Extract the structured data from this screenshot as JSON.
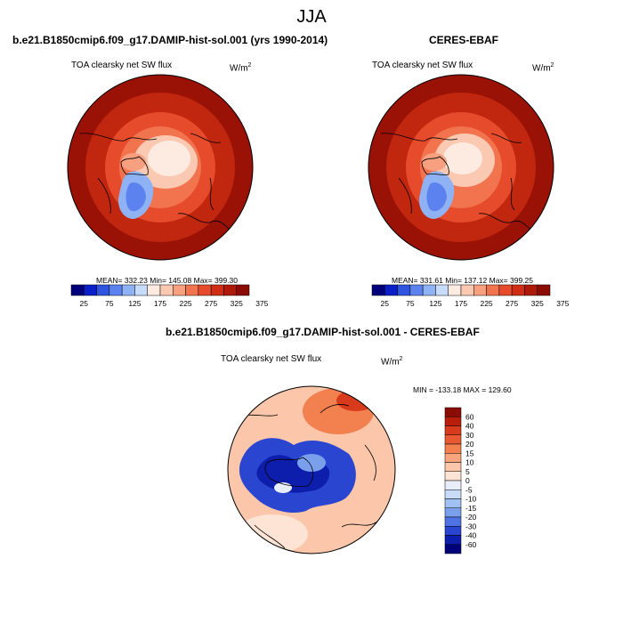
{
  "figure": {
    "title": "JJA"
  },
  "panels": {
    "model": {
      "title": "b.e21.B1850cmip6.f09_g17.DAMIP-hist-sol.001 (yrs 1990-2014)",
      "variable": "TOA clearsky net SW flux",
      "units_base": "W/m",
      "units_exp": "2",
      "stats": "MEAN= 332.23  Min= 145.08  Max= 399.30"
    },
    "obs": {
      "title": "CERES-EBAF",
      "variable": "TOA clearsky net SW flux",
      "units_base": "W/m",
      "units_exp": "2",
      "stats": "MEAN= 331.61  Min= 137.12  Max= 399.25"
    },
    "diff": {
      "title": "b.e21.B1850cmip6.f09_g17.DAMIP-hist-sol.001 - CERES-EBAF",
      "variable": "TOA clearsky net SW flux",
      "units_base": "W/m",
      "units_exp": "2",
      "stats": "MIN = -133.18  MAX = 129.60"
    }
  },
  "colorbars": {
    "abs_ticks": [
      "25",
      "75",
      "125",
      "175",
      "225",
      "275",
      "325",
      "375"
    ],
    "abs_colors": [
      "#00007a",
      "#0a1fc8",
      "#2f55e0",
      "#5b82ee",
      "#8fb2f5",
      "#c7dbfb",
      "#fdebe2",
      "#fbc9b1",
      "#f7a07f",
      "#f2744f",
      "#e64b2c",
      "#cf2d14",
      "#ad1a09",
      "#8a0c04"
    ],
    "diff_ticks": [
      "60",
      "40",
      "30",
      "20",
      "15",
      "10",
      "5",
      "0",
      "-5",
      "-10",
      "-15",
      "-20",
      "-30",
      "-40",
      "-60"
    ],
    "diff_colors": [
      "#8a0c04",
      "#b81e0a",
      "#d83b1c",
      "#ea5a32",
      "#f3804f",
      "#f8a47d",
      "#fbc6a9",
      "#fde4d4",
      "#e9edf7",
      "#c8dbf7",
      "#a0c1f2",
      "#7aa0ec",
      "#4f73e2",
      "#2a45cf",
      "#0c1eab",
      "#00007a"
    ]
  }
}
